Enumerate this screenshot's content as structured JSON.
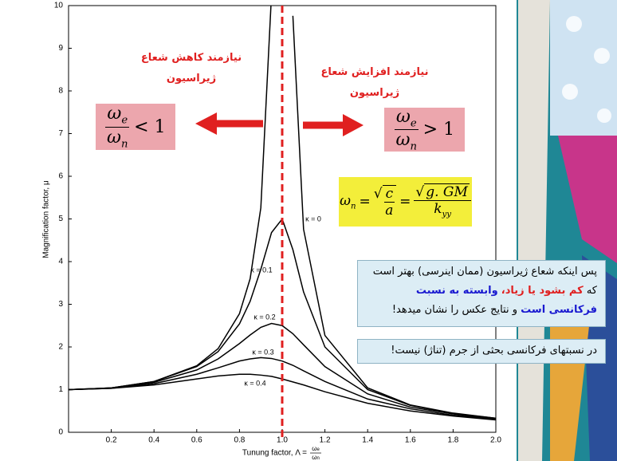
{
  "chart_data": {
    "type": "line",
    "y_label": "Magnification factor, μ",
    "x_label": "Tunung factor, Λ =",
    "x_label_fraction": {
      "num": "ω",
      "num_sub": "e",
      "den": "ω",
      "den_sub": "n"
    },
    "x": [
      0,
      0.2,
      0.4,
      0.6,
      0.7,
      0.8,
      0.85,
      0.9,
      0.95,
      1.0,
      1.05,
      1.1,
      1.2,
      1.4,
      1.6,
      1.8,
      2.0
    ],
    "series": [
      {
        "name": "κ = 0",
        "color": "#000000",
        "values": [
          1,
          1.04,
          1.19,
          1.56,
          1.96,
          2.78,
          3.6,
          5.26,
          10.26,
          null,
          9.76,
          4.76,
          2.27,
          1.04,
          0.64,
          0.45,
          0.33
        ]
      },
      {
        "name": "κ = 0.1",
        "color": "#000000",
        "values": [
          1,
          1.04,
          1.19,
          1.54,
          1.89,
          2.54,
          3.07,
          3.82,
          4.68,
          5.0,
          4.28,
          3.29,
          2.0,
          1.0,
          0.63,
          0.44,
          0.33
        ]
      },
      {
        "name": "κ = 0.2",
        "color": "#000000",
        "values": [
          1,
          1.04,
          1.17,
          1.46,
          1.72,
          2.08,
          2.28,
          2.46,
          2.55,
          2.5,
          2.31,
          2.05,
          1.54,
          0.9,
          0.59,
          0.43,
          0.32
        ]
      },
      {
        "name": "κ = 0.3",
        "color": "#000000",
        "values": [
          1,
          1.03,
          1.14,
          1.36,
          1.51,
          1.67,
          1.72,
          1.75,
          1.73,
          1.67,
          1.57,
          1.44,
          1.19,
          0.78,
          0.55,
          0.4,
          0.31
        ]
      },
      {
        "name": "κ = 0.4",
        "color": "#000000",
        "values": [
          1,
          1.03,
          1.11,
          1.25,
          1.32,
          1.36,
          1.36,
          1.34,
          1.31,
          1.25,
          1.18,
          1.11,
          0.95,
          0.68,
          0.5,
          0.38,
          0.29
        ]
      }
    ],
    "xlim": [
      0,
      2.0
    ],
    "ylim": [
      0,
      10
    ],
    "xticks": [
      0.2,
      0.4,
      0.6,
      0.8,
      {
        "value": 1,
        "label": "1.0"
      },
      1.2,
      1.4,
      1.6,
      1.8,
      {
        "value": 2,
        "label": "2.0"
      }
    ],
    "yticks": [
      0,
      1,
      2,
      3,
      4,
      5,
      6,
      7,
      8,
      9,
      10
    ],
    "vline": {
      "value": 1.0,
      "color": "#e02020"
    }
  },
  "annotations": {
    "left_heading": [
      "نیازمند کاهش شعاع",
      "ژیراسیون"
    ],
    "right_heading": [
      "نیازمند افزایش شعاع",
      "ژیراسیون"
    ],
    "ratio_left": {
      "num": "ω",
      "num_sub": "e",
      "den": "ω",
      "den_sub": "n",
      "rel": "< 1"
    },
    "ratio_right": {
      "num": "ω",
      "num_sub": "e",
      "den": "ω",
      "den_sub": "n",
      "rel": "> 1"
    },
    "natural_frequency": {
      "lhs": "ω",
      "lhs_sub": "n",
      "eq": "=",
      "root1_num": "c",
      "root1_den": "a",
      "eq2": "=",
      "root2": "g. GM",
      "den": "k",
      "den_sub": "yy"
    },
    "note1": [
      {
        "text": "پس اینکه شعاع ژیراسیون (ممان اینرسی) بهتر است که",
        "color": "#000000"
      },
      {
        "text": "کم بشود یا زیاد،",
        "color": "#e02020"
      },
      {
        "text": "وابسته به نسبت فرکانسی است",
        "color": "#1a1ad0"
      },
      {
        "text": "و نتایج عکس را نشان میدهد!",
        "color": "#000000"
      }
    ],
    "note2": "در نسبتهای فرکانسی بحثی از جرم (تناژ) نیست!"
  }
}
